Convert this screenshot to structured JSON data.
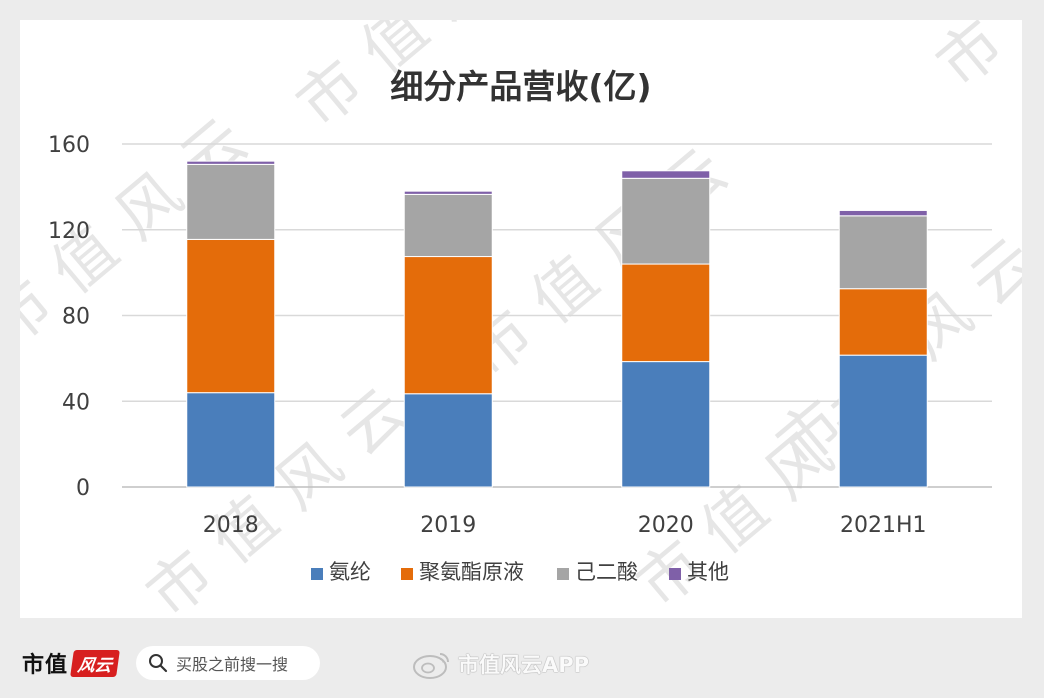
{
  "brand": {
    "name": "市值",
    "badge": "风云"
  },
  "search": {
    "placeholder": "买股之前搜一搜"
  },
  "watermark": {
    "text": "市值风云APP"
  },
  "watermark_glyphs": "市值风云",
  "colors": {
    "background": "#ececec",
    "card": "#ffffff",
    "gridline": "#d9d9d9",
    "axis_text": "#595959"
  },
  "chart_data": {
    "type": "bar",
    "stacked": true,
    "title": "细分产品营收(亿)",
    "categories": [
      "2018",
      "2019",
      "2020",
      "2021H1"
    ],
    "series": [
      {
        "name": "氨纶",
        "color": "#4a7ebb",
        "values": [
          44,
          43.5,
          58.5,
          61.5
        ]
      },
      {
        "name": "聚氨酯原液",
        "color": "#e46c0a",
        "values": [
          71.5,
          64,
          45.5,
          31
        ]
      },
      {
        "name": "己二酸",
        "color": "#a5a5a5",
        "values": [
          35,
          29,
          40,
          34
        ]
      },
      {
        "name": "其他",
        "color": "#7f60a8",
        "values": [
          1.5,
          1.5,
          3.5,
          2.5
        ]
      }
    ],
    "ylim": [
      0,
      160
    ],
    "yticks": [
      0,
      40,
      80,
      120,
      160
    ],
    "xlabel": "",
    "ylabel": "",
    "grid": true,
    "legend": "bottom"
  }
}
